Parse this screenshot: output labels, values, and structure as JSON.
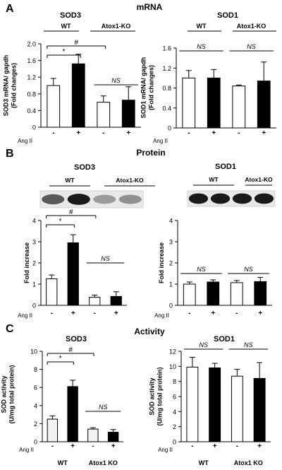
{
  "figure": {
    "section_a": {
      "letter": "A",
      "title": "mRNA"
    },
    "section_b": {
      "letter": "B",
      "title": "Protein"
    },
    "section_c": {
      "letter": "C",
      "title": "Activity"
    },
    "treatment_label": "Ang II",
    "treatment_ticks": [
      "-",
      "+",
      "-",
      "+"
    ],
    "western_blots": [
      {
        "title": "SOD3",
        "groups": [
          "WT",
          "Atox1-KO"
        ],
        "band_intensity": [
          0.65,
          0.95,
          0.35,
          0.4
        ]
      },
      {
        "title": "SOD1",
        "groups": [
          "WT",
          "Atox1-KO"
        ],
        "band_intensity": [
          0.95,
          0.95,
          0.95,
          0.95
        ]
      }
    ]
  },
  "chart_data": [
    {
      "type": "bar",
      "panel": "A",
      "title": "SOD3",
      "groups": [
        "WT",
        "Atox1-KO"
      ],
      "group_labels_position": "top",
      "categories": [
        "-",
        "+",
        "-",
        "+"
      ],
      "values": [
        1.0,
        1.52,
        0.6,
        0.65
      ],
      "errors": [
        0.17,
        0.23,
        0.15,
        0.32
      ],
      "bar_colors": [
        "#ffffff",
        "#000000",
        "#ffffff",
        "#000000"
      ],
      "ylabel": "SOD3 mRNA/ gapdh\n(Fold changes)",
      "ylim": [
        0,
        2.0
      ],
      "yticks": [
        "0",
        "0.4",
        "0.8",
        "1.2",
        "1.6",
        "2.0"
      ],
      "annotations": [
        {
          "text": "#",
          "from": 0,
          "to": 2
        },
        {
          "text": "*",
          "from": 0,
          "to": 1
        },
        {
          "text": "NS",
          "from": 2,
          "to": 3
        }
      ]
    },
    {
      "type": "bar",
      "panel": "A",
      "title": "SOD1",
      "groups": [
        "WT",
        "Atox1-KO"
      ],
      "group_labels_position": "top",
      "categories": [
        "-",
        "+",
        "-",
        "+"
      ],
      "values": [
        1.0,
        1.0,
        0.84,
        0.94
      ],
      "errors": [
        0.15,
        0.17,
        0.02,
        0.38
      ],
      "bar_colors": [
        "#ffffff",
        "#000000",
        "#ffffff",
        "#000000"
      ],
      "ylabel": "SOD1 mRNA/ gapdh\n(Fold changes)",
      "ylim": [
        0,
        1.6
      ],
      "yticks": [
        "0",
        "0.4",
        "0.8",
        "1.2",
        "1.6"
      ],
      "annotations": [
        {
          "text": "NS",
          "from": 0,
          "to": 1
        },
        {
          "text": "NS",
          "from": 2,
          "to": 3
        }
      ]
    },
    {
      "type": "bar",
      "panel": "B",
      "title": "",
      "categories": [
        "-",
        "+",
        "-",
        "+"
      ],
      "values": [
        1.25,
        2.95,
        0.38,
        0.42
      ],
      "errors": [
        0.18,
        0.38,
        0.1,
        0.22
      ],
      "bar_colors": [
        "#ffffff",
        "#000000",
        "#ffffff",
        "#000000"
      ],
      "ylabel": "Fold increase",
      "ylim": [
        0,
        4
      ],
      "yticks": [
        "0",
        "1",
        "2",
        "3",
        "4"
      ],
      "annotations": [
        {
          "text": "#",
          "from": 0,
          "to": 2
        },
        {
          "text": "*",
          "from": 0,
          "to": 1
        },
        {
          "text": "NS",
          "from": 2,
          "to": 3
        }
      ]
    },
    {
      "type": "bar",
      "panel": "B",
      "title": "",
      "categories": [
        "-",
        "+",
        "-",
        "+"
      ],
      "values": [
        1.0,
        1.1,
        1.07,
        1.12
      ],
      "errors": [
        0.1,
        0.1,
        0.1,
        0.2
      ],
      "bar_colors": [
        "#ffffff",
        "#000000",
        "#ffffff",
        "#000000"
      ],
      "ylabel": "Fold increase",
      "ylim": [
        0,
        4
      ],
      "yticks": [
        "0",
        "1",
        "2",
        "3",
        "4"
      ],
      "annotations": [
        {
          "text": "NS",
          "from": 0,
          "to": 1
        },
        {
          "text": "NS",
          "from": 2,
          "to": 3
        }
      ]
    },
    {
      "type": "bar",
      "panel": "C",
      "title": "SOD3",
      "groups": [
        "WT",
        "Atox1 KO"
      ],
      "group_labels_position": "bottom",
      "categories": [
        "-",
        "+",
        "-",
        "+"
      ],
      "values": [
        2.5,
        6.1,
        1.4,
        1.05
      ],
      "errors": [
        0.35,
        0.7,
        0.15,
        0.3
      ],
      "bar_colors": [
        "#f2f2f2",
        "#000000",
        "#f2f2f2",
        "#000000"
      ],
      "ylabel": "SOD activity\n(U/mg total protein)",
      "ylim": [
        0,
        10
      ],
      "yticks": [
        "0",
        "2",
        "4",
        "6",
        "8",
        "10"
      ],
      "annotations": [
        {
          "text": "#",
          "from": 0,
          "to": 2
        },
        {
          "text": "*",
          "from": 0,
          "to": 1
        },
        {
          "text": "NS",
          "from": 2,
          "to": 3
        }
      ]
    },
    {
      "type": "bar",
      "panel": "C",
      "title": "SOD1",
      "groups": [
        "WT",
        "Atox1 KO"
      ],
      "group_labels_position": "bottom",
      "categories": [
        "-",
        "+",
        "-",
        "+"
      ],
      "values": [
        9.9,
        9.8,
        8.7,
        8.4
      ],
      "errors": [
        1.3,
        0.6,
        0.9,
        2.1
      ],
      "bar_colors": [
        "#ffffff",
        "#000000",
        "#ffffff",
        "#000000"
      ],
      "ylabel": "SOD activity\n(U/mg total protein)",
      "ylim": [
        0,
        12
      ],
      "yticks": [
        "0",
        "2",
        "4",
        "6",
        "8",
        "10",
        "12"
      ],
      "annotations": [
        {
          "text": "NS",
          "from": 0,
          "to": 1
        },
        {
          "text": "NS",
          "from": 2,
          "to": 3
        }
      ]
    }
  ]
}
